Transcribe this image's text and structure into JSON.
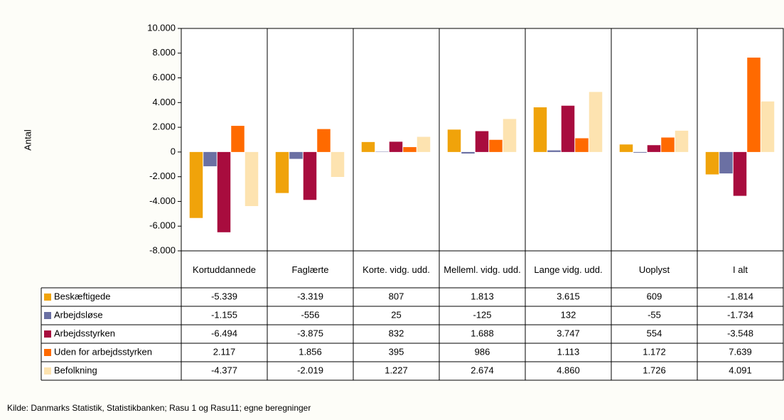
{
  "chart_data": {
    "type": "bar",
    "y_label": "Antal",
    "source": "Kilde: Danmarks Statistik, Statistikbanken; Rasu 1 og Rasu11; egne beregninger",
    "categories": [
      "Kortuddannede",
      "Faglærte",
      "Korte. vidg. udd.",
      "Melleml. vidg. udd.",
      "Lange vidg. udd.",
      "Uoplyst",
      "I alt"
    ],
    "ylim": [
      -8000,
      10000
    ],
    "yticks": [
      {
        "value": -8000,
        "label": "-8.000"
      },
      {
        "value": -6000,
        "label": "-6.000"
      },
      {
        "value": -4000,
        "label": "-4.000"
      },
      {
        "value": -2000,
        "label": "-2.000"
      },
      0,
      {
        "value": 2000,
        "label": "2.000"
      },
      {
        "value": 4000,
        "label": "4.000"
      },
      {
        "value": 6000,
        "label": "6.000"
      },
      {
        "value": 8000,
        "label": "8.000"
      },
      {
        "value": 10000,
        "label": "10.000"
      }
    ],
    "series": [
      {
        "name": "Beskæftigede",
        "color": "#f0a30a",
        "values": [
          -5339,
          -3319,
          807,
          1813,
          3615,
          609,
          -1814
        ],
        "value_labels": [
          "-5.339",
          "-3.319",
          "807",
          "1.813",
          "3.615",
          "609",
          "-1.814"
        ]
      },
      {
        "name": "Arbejdsløse",
        "color": "#6b70a3",
        "values": [
          -1155,
          -556,
          25,
          -125,
          132,
          -55,
          -1734
        ],
        "value_labels": [
          "-1.155",
          "-556",
          "25",
          "-125",
          "132",
          "-55",
          "-1.734"
        ]
      },
      {
        "name": "Arbejdsstyrken",
        "color": "#a80c3e",
        "values": [
          -6494,
          -3875,
          832,
          1688,
          3747,
          554,
          -3548
        ],
        "value_labels": [
          "-6.494",
          "-3.875",
          "832",
          "1.688",
          "3.747",
          "554",
          "-3.548"
        ]
      },
      {
        "name": "Uden for arbejdsstyrken",
        "color": "#ff6a00",
        "values": [
          2117,
          1856,
          395,
          986,
          1113,
          1172,
          7639
        ],
        "value_labels": [
          "2.117",
          "1.856",
          "395",
          "986",
          "1.113",
          "1.172",
          "7.639"
        ]
      },
      {
        "name": "Befolkning",
        "color": "#fde3b0",
        "values": [
          -4377,
          -2019,
          1227,
          2674,
          4860,
          1726,
          4091
        ],
        "value_labels": [
          "-4.377",
          "-2.019",
          "1.227",
          "2.674",
          "4.860",
          "1.726",
          "4.091"
        ]
      }
    ]
  }
}
